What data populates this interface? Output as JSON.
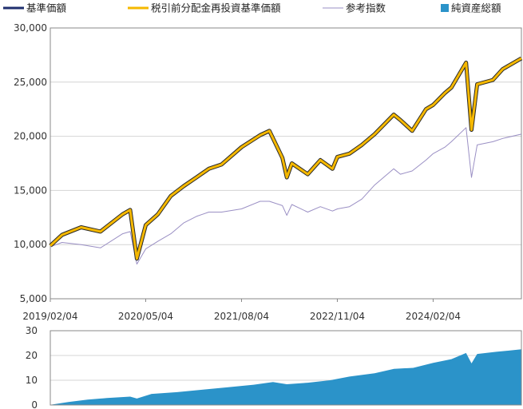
{
  "colors": {
    "nav": "#1f2f6e",
    "reinvested": "#f5b800",
    "reinvested_edge": "#2a2a2a",
    "reference": "#9a8fc4",
    "net_assets": "#2b93c9",
    "grid": "#d4d4d4",
    "axis": "#888888"
  },
  "legend": [
    {
      "key": "nav",
      "label": "基準価額",
      "style": "line"
    },
    {
      "key": "reinvested",
      "label": "税引前分配金再投資基準価額",
      "style": "line"
    },
    {
      "key": "reference",
      "label": "参考指数",
      "style": "thin"
    },
    {
      "key": "net_assets",
      "label": "純資産総額",
      "style": "square"
    }
  ],
  "chart_data": [
    {
      "type": "line",
      "x_tick_labels": [
        "2019/02/04",
        "2020/05/04",
        "2021/08/04",
        "2022/11/04",
        "2024/02/04"
      ],
      "x_ticks": [
        "2019-02-04",
        "2020-05-04",
        "2021-08-04",
        "2022-11-04",
        "2024-02-04"
      ],
      "x_range": [
        "2019-02-04",
        "2025-03-31"
      ],
      "y_tick_labels": [
        "5,000",
        "10,000",
        "15,000",
        "20,000",
        "25,000",
        "30,000"
      ],
      "y_ticks": [
        5000,
        10000,
        15000,
        20000,
        25000,
        30000
      ],
      "ylim": [
        5000,
        30000
      ],
      "grid": true,
      "legend_position": "top",
      "series": [
        {
          "name": "基準価額",
          "key": "nav",
          "x": [
            "2019-02-04",
            "2019-04-01",
            "2019-07-01",
            "2019-10-01",
            "2020-01-15",
            "2020-02-20",
            "2020-03-23",
            "2020-05-04",
            "2020-07-01",
            "2020-09-01",
            "2020-11-01",
            "2021-01-01",
            "2021-03-01",
            "2021-05-01",
            "2021-08-04",
            "2021-11-01",
            "2021-12-15",
            "2022-02-15",
            "2022-03-08",
            "2022-04-01",
            "2022-06-16",
            "2022-08-15",
            "2022-10-12",
            "2022-11-04",
            "2023-01-01",
            "2023-03-01",
            "2023-05-01",
            "2023-07-31",
            "2023-09-01",
            "2023-10-27",
            "2024-01-01",
            "2024-02-04",
            "2024-03-31",
            "2024-05-01",
            "2024-07-10",
            "2024-08-05",
            "2024-09-01",
            "2024-11-15",
            "2025-01-01",
            "2025-03-31"
          ],
          "y": [
            9900,
            10900,
            11600,
            11200,
            12800,
            13200,
            8700,
            11800,
            12800,
            14500,
            15400,
            16200,
            17000,
            17400,
            19000,
            20100,
            20500,
            18000,
            16200,
            17500,
            16500,
            17800,
            17000,
            18100,
            18400,
            19200,
            20200,
            22000,
            21500,
            20500,
            22500,
            22900,
            24000,
            24500,
            26800,
            20600,
            24800,
            25200,
            26200,
            27200
          ]
        },
        {
          "name": "税引前分配金再投資基準価額",
          "key": "reinvested",
          "x": [
            "2019-02-04",
            "2019-04-01",
            "2019-07-01",
            "2019-10-01",
            "2020-01-15",
            "2020-02-20",
            "2020-03-23",
            "2020-05-04",
            "2020-07-01",
            "2020-09-01",
            "2020-11-01",
            "2021-01-01",
            "2021-03-01",
            "2021-05-01",
            "2021-08-04",
            "2021-11-01",
            "2021-12-15",
            "2022-02-15",
            "2022-03-08",
            "2022-04-01",
            "2022-06-16",
            "2022-08-15",
            "2022-10-12",
            "2022-11-04",
            "2023-01-01",
            "2023-03-01",
            "2023-05-01",
            "2023-07-31",
            "2023-09-01",
            "2023-10-27",
            "2024-01-01",
            "2024-02-04",
            "2024-03-31",
            "2024-05-01",
            "2024-07-10",
            "2024-08-05",
            "2024-09-01",
            "2024-11-15",
            "2025-01-01",
            "2025-03-31"
          ],
          "y": [
            9900,
            10900,
            11600,
            11200,
            12800,
            13200,
            8700,
            11800,
            12800,
            14500,
            15400,
            16200,
            17000,
            17400,
            19000,
            20100,
            20500,
            18000,
            16200,
            17500,
            16500,
            17800,
            17000,
            18100,
            18400,
            19200,
            20200,
            22000,
            21500,
            20500,
            22500,
            22900,
            24000,
            24500,
            26800,
            20600,
            24800,
            25200,
            26200,
            27200
          ]
        },
        {
          "name": "参考指数",
          "key": "reference",
          "x": [
            "2019-02-04",
            "2019-04-01",
            "2019-07-01",
            "2019-10-01",
            "2020-01-15",
            "2020-02-20",
            "2020-03-23",
            "2020-05-04",
            "2020-07-01",
            "2020-09-01",
            "2020-11-01",
            "2021-01-01",
            "2021-03-01",
            "2021-05-01",
            "2021-08-04",
            "2021-11-01",
            "2021-12-15",
            "2022-02-15",
            "2022-03-08",
            "2022-04-01",
            "2022-06-16",
            "2022-08-15",
            "2022-10-12",
            "2022-11-04",
            "2023-01-01",
            "2023-03-01",
            "2023-05-01",
            "2023-07-31",
            "2023-09-01",
            "2023-10-27",
            "2024-01-01",
            "2024-02-04",
            "2024-03-31",
            "2024-05-01",
            "2024-07-10",
            "2024-08-05",
            "2024-09-01",
            "2024-11-15",
            "2025-01-01",
            "2025-03-31"
          ],
          "y": [
            9800,
            10200,
            10000,
            9700,
            11000,
            11200,
            8200,
            9600,
            10300,
            11000,
            12000,
            12600,
            13000,
            13000,
            13300,
            14000,
            14000,
            13600,
            12700,
            13700,
            13000,
            13500,
            13100,
            13300,
            13500,
            14200,
            15500,
            17000,
            16500,
            16800,
            17800,
            18400,
            19000,
            19500,
            20800,
            16200,
            19200,
            19500,
            19800,
            20200
          ]
        }
      ]
    },
    {
      "type": "area",
      "name": "純資産総額",
      "key": "net_assets",
      "x_range": [
        "2019-02-04",
        "2025-03-31"
      ],
      "y_tick_labels": [
        "0",
        "10",
        "20",
        "30"
      ],
      "y_ticks": [
        0,
        10,
        20,
        30
      ],
      "ylim": [
        0,
        30
      ],
      "grid": true,
      "x": [
        "2019-02-04",
        "2019-05-01",
        "2019-08-01",
        "2019-11-01",
        "2020-02-20",
        "2020-03-23",
        "2020-06-01",
        "2020-10-01",
        "2021-02-01",
        "2021-06-01",
        "2021-10-01",
        "2022-01-01",
        "2022-03-08",
        "2022-06-16",
        "2022-10-01",
        "2023-01-01",
        "2023-05-01",
        "2023-08-01",
        "2023-11-01",
        "2024-02-04",
        "2024-05-01",
        "2024-07-10",
        "2024-08-05",
        "2024-09-01",
        "2024-12-01",
        "2025-03-31"
      ],
      "y": [
        0.1,
        1.2,
        2.2,
        2.8,
        3.4,
        2.6,
        4.5,
        5.2,
        6.2,
        7.2,
        8.2,
        9.3,
        8.4,
        9.0,
        10.0,
        11.5,
        12.8,
        14.6,
        15.0,
        17.0,
        18.5,
        21.0,
        16.8,
        20.6,
        21.5,
        22.5
      ]
    }
  ]
}
